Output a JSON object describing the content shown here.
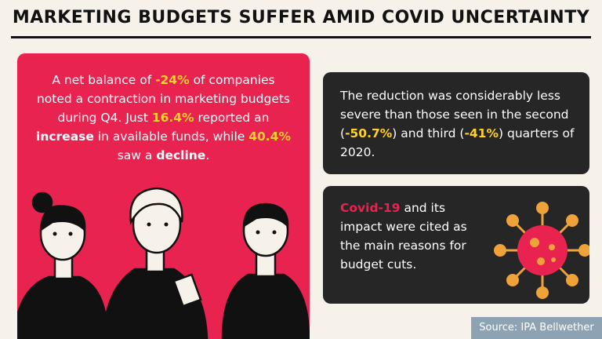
{
  "header": {
    "title": "MARKETING BUDGETS SUFFER AMID COVID UNCERTAINTY"
  },
  "left_card": {
    "segments": [
      "A net balance of ",
      "-24%",
      " of companies noted a contraction in marketing budgets during Q4. Just ",
      "16.4%",
      " reported an ",
      "increase",
      " in available funds, while ",
      "40.4%",
      " saw a ",
      "decline",
      "."
    ]
  },
  "right_cards": [
    {
      "segments": [
        "The reduction was considerably less severe than those seen in the second (",
        "-50.7%",
        ") and third (",
        "-41%",
        ") quarters of 2020."
      ]
    },
    {
      "segments": [
        "Covid-19",
        " and its impact were cited as the main reasons for budget cuts."
      ]
    }
  ],
  "footer": {
    "source": "Source: IPA Bellwether"
  }
}
